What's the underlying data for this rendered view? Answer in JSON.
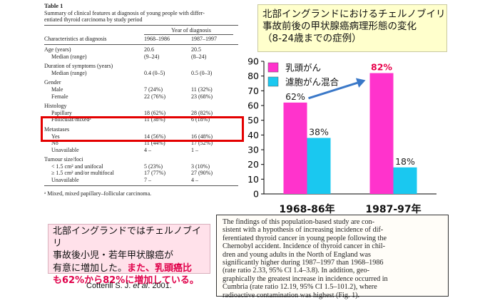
{
  "table": {
    "title": "Table 1",
    "caption_lines": [
      "Summary of clinical features at diagnosis of young people with differ-",
      "entiated thyroid carcinoma by study period"
    ],
    "year_of_diagnosis_label": "Year of diagnosis",
    "header": {
      "label": "Characteristics at diagnosis",
      "col1": "1968–1986",
      "col2": "1987–1997"
    },
    "sections": [
      {
        "title": "Age (years)",
        "title_col1": "20.6",
        "title_col2": "20.5",
        "rows": [
          {
            "label": "Median (range)",
            "col1": "(9–24)",
            "col2": "(8–24)"
          }
        ]
      },
      {
        "title": "Duration of symptoms (years)",
        "title_col1": "",
        "title_col2": "",
        "rows": [
          {
            "label": "Median (range)",
            "col1": "0.4 (0–5)",
            "col2": "0.5 (0–3)"
          }
        ]
      },
      {
        "title": "Gender",
        "title_col1": "",
        "title_col2": "",
        "rows": [
          {
            "label": "Male",
            "col1": "7 (24%)",
            "col2": "11 (32%)"
          },
          {
            "label": "Female",
            "col1": "22 (76%)",
            "col2": "23 (68%)"
          }
        ]
      },
      {
        "title": "Histology",
        "title_col1": "",
        "title_col2": "",
        "rows": [
          {
            "label": "Papillary",
            "col1": "18 (62%)",
            "col2": "28 (82%)"
          },
          {
            "label": "Follicular/mixedᵃ",
            "col1": "11 (38%)",
            "col2": "6 (18%)"
          }
        ]
      },
      {
        "title": "Metastases",
        "title_col1": "",
        "title_col2": "",
        "rows": [
          {
            "label": "Yes",
            "col1": "14 (56%)",
            "col2": "16 (48%)"
          },
          {
            "label": "No",
            "col1": "11 (44%)",
            "col2": "17 (52%)"
          },
          {
            "label": "Unavailable",
            "col1": "4 –",
            "col2": "1 –"
          }
        ]
      },
      {
        "title": "Tumour size/foci",
        "title_col1": "",
        "title_col2": "",
        "rows": [
          {
            "label": "< 1.5 cm² and unifocal",
            "col1": "5 (23%)",
            "col2": "3 (10%)"
          },
          {
            "label": "≥ 1.5 cm² and/or multifocal",
            "col1": "17 (77%)",
            "col2": "27 (90%)"
          },
          {
            "label": "Unavailable",
            "col1": "7 –",
            "col2": "4 –"
          }
        ]
      }
    ],
    "footnote": "ᵃ  Mixed, mixed papillary–follicular carcinoma."
  },
  "chart_title_lines": [
    "北部イングランドにおけるチェルノブイリ",
    "事故前後の甲状腺癌病理形態の変化",
    "（8-24歳までの症例）"
  ],
  "chart_data": {
    "type": "bar",
    "categories": [
      "1968-86年",
      "1987-97年"
    ],
    "series": [
      {
        "name": "乳頭がん",
        "values": [
          62,
          82
        ],
        "labels": [
          "62%",
          "82%"
        ]
      },
      {
        "name": "濾胞がん混合",
        "values": [
          38,
          18
        ],
        "labels": [
          "38%",
          "18%"
        ]
      }
    ],
    "ylim": [
      0,
      90
    ],
    "yticks": [
      0,
      10,
      20,
      30,
      40,
      50,
      60,
      70,
      80,
      90
    ],
    "grid": false,
    "legend": "top-left",
    "colors": {
      "papillary": "#ff33cc",
      "follicular": "#1ac8f0",
      "arrow": "#3a78c8",
      "highlight_label": "#e8004a"
    }
  },
  "summary": {
    "lines": [
      {
        "plain": "北部イングランドではチェルノブイリ",
        "hl": ""
      },
      {
        "plain": "事故後小児・若年甲状腺癌が",
        "hl": ""
      },
      {
        "plain": "有意に増加した。",
        "hl": "また、乳頭癌比"
      },
      {
        "plain": "",
        "hl": "も62%から82%に増加している。"
      }
    ],
    "citation_author": "Cotterill S. J. ",
    "citation_etal": "et al",
    "citation_year": ". 2001."
  },
  "quote_lines": [
    "The findings of this population-based study are con-",
    "sistent with a hypothesis of increasing incidence of dif-",
    "ferentiated thyroid cancer in young people following the",
    "Chernobyl accident. Incidence of thyroid cancer in chil-",
    "dren and young adults in the North of England was",
    "significantly higher during 1987–1997 than 1968–1986",
    "(rate ratio 2.33, 95% CI 1.4–3.8). In addition, geo-",
    "graphically the greatest increase in incidence occurred in",
    "Cumbria (rate ratio 12.19, 95% CI 1.5–101.2), where",
    "radioactive contamination was highest (Fig. 1)."
  ]
}
